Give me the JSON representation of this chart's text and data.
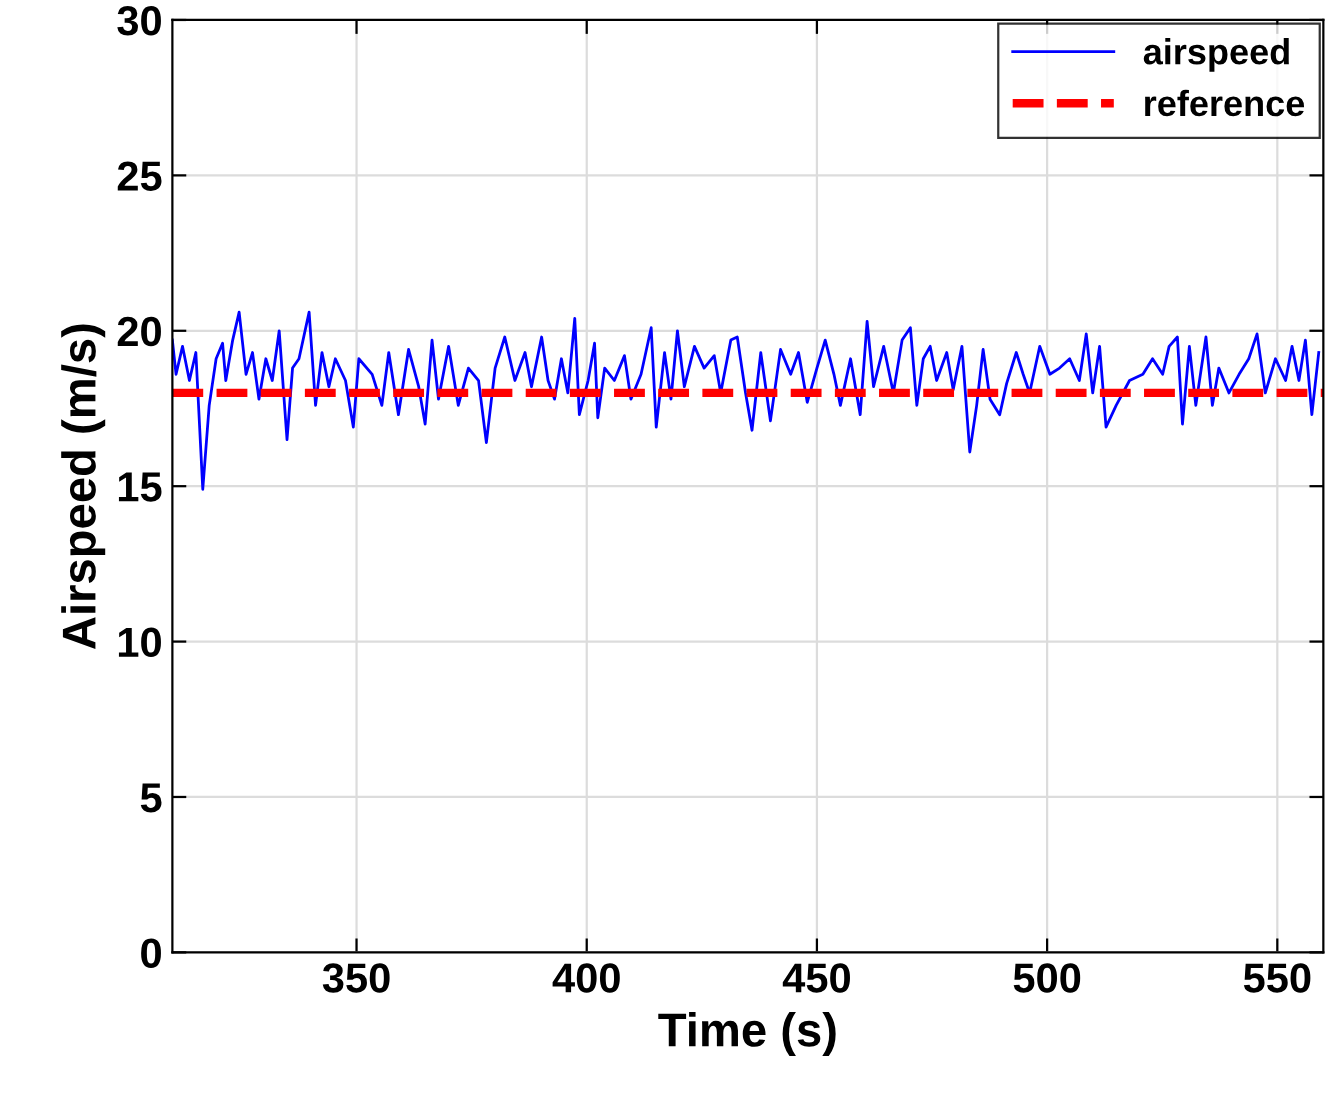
{
  "chart_data": {
    "type": "line",
    "xlabel": "Time (s)",
    "ylabel": "Airspeed (m/s)",
    "xlim": [
      310,
      560
    ],
    "ylim": [
      0,
      30
    ],
    "xticks": [
      350,
      400,
      450,
      500,
      550
    ],
    "yticks": [
      0,
      5,
      10,
      15,
      20,
      25,
      30
    ],
    "grid": true,
    "legend": "top right",
    "series": [
      {
        "name": "airspeed",
        "color": "#0000ff",
        "line_style": "solid",
        "x": [
          310,
          310.8,
          312.2,
          313.7,
          315.1,
          316.6,
          318.0,
          319.5,
          320.9,
          321.6,
          323.1,
          324.5,
          326.0,
          327.4,
          328.8,
          330.3,
          331.7,
          333.2,
          334.9,
          336.1,
          337.5,
          339.7,
          341.1,
          342.5,
          344.0,
          345.4,
          347.6,
          349.3,
          350.5,
          353.4,
          355.5,
          357.0,
          359.1,
          361.3,
          363.5,
          364.9,
          366.4,
          367.8,
          370.0,
          372.1,
          374.3,
          376.5,
          378.2,
          380.1,
          382.2,
          384.4,
          386.6,
          388.0,
          390.2,
          391.6,
          393.0,
          394.5,
          395.9,
          397.4,
          398.4,
          400.3,
          401.7,
          402.4,
          403.9,
          406.0,
          408.2,
          409.6,
          411.8,
          414.0,
          415.1,
          416.9,
          418.3,
          419.7,
          421.2,
          423.4,
          425.5,
          427.7,
          429.1,
          431.3,
          432.7,
          434.5,
          435.9,
          437.8,
          439.9,
          442.1,
          444.3,
          446.0,
          447.9,
          450.0,
          451.8,
          453.7,
          455.1,
          457.3,
          459.4,
          460.9,
          462.3,
          464.5,
          466.6,
          468.5,
          470.3,
          471.7,
          473.1,
          474.6,
          476.0,
          478.2,
          479.6,
          481.5,
          483.2,
          484.7,
          486.1,
          487.6,
          489.7,
          491.2,
          493.3,
          494.8,
          496.2,
          498.4,
          500.6,
          502.7,
          504.9,
          507.0,
          508.5,
          509.9,
          511.4,
          512.8,
          515.0,
          517.9,
          520.8,
          522.9,
          525.1,
          526.5,
          528.3,
          529.4,
          530.9,
          532.3,
          534.5,
          535.9,
          537.3,
          539.5,
          541.7,
          543.8,
          545.6,
          547.4,
          549.6,
          551.8,
          553.2,
          554.7,
          556.1,
          557.5,
          559.0
        ],
        "values": [
          19.7,
          18.6,
          19.5,
          18.4,
          19.3,
          14.9,
          17.6,
          19.1,
          19.6,
          18.4,
          19.7,
          20.6,
          18.6,
          19.3,
          17.8,
          19.1,
          18.4,
          20.0,
          16.5,
          18.8,
          19.1,
          20.6,
          17.6,
          19.3,
          18.2,
          19.1,
          18.4,
          16.9,
          19.1,
          18.6,
          17.6,
          19.3,
          17.3,
          19.4,
          18.2,
          17.0,
          19.7,
          17.8,
          19.5,
          17.6,
          18.8,
          18.4,
          16.4,
          18.8,
          19.8,
          18.4,
          19.3,
          18.2,
          19.8,
          18.4,
          17.8,
          19.1,
          18.0,
          20.4,
          17.3,
          18.4,
          19.6,
          17.2,
          18.8,
          18.4,
          19.2,
          17.8,
          18.6,
          20.1,
          16.9,
          19.3,
          17.8,
          20.0,
          18.2,
          19.5,
          18.8,
          19.2,
          18.0,
          19.7,
          19.8,
          18.0,
          16.8,
          19.3,
          17.1,
          19.4,
          18.6,
          19.3,
          17.7,
          18.8,
          19.7,
          18.6,
          17.6,
          19.1,
          17.3,
          20.3,
          18.2,
          19.5,
          18.0,
          19.7,
          20.1,
          17.6,
          19.1,
          19.5,
          18.4,
          19.3,
          18.1,
          19.5,
          16.1,
          17.6,
          19.4,
          17.8,
          17.3,
          18.3,
          19.3,
          18.6,
          18.0,
          19.5,
          18.6,
          18.8,
          19.1,
          18.4,
          19.9,
          18.0,
          19.5,
          16.9,
          17.6,
          18.4,
          18.6,
          19.1,
          18.6,
          19.5,
          19.8,
          17.0,
          19.5,
          17.6,
          19.8,
          17.6,
          18.8,
          18.0,
          18.6,
          19.1,
          19.9,
          18.0,
          19.1,
          18.4,
          19.5,
          18.4,
          19.7,
          17.3,
          19.3
        ]
      },
      {
        "name": "reference",
        "color": "#ff0000",
        "line_style": "dashed",
        "x": [
          310,
          560
        ],
        "values": [
          18,
          18
        ]
      }
    ]
  }
}
